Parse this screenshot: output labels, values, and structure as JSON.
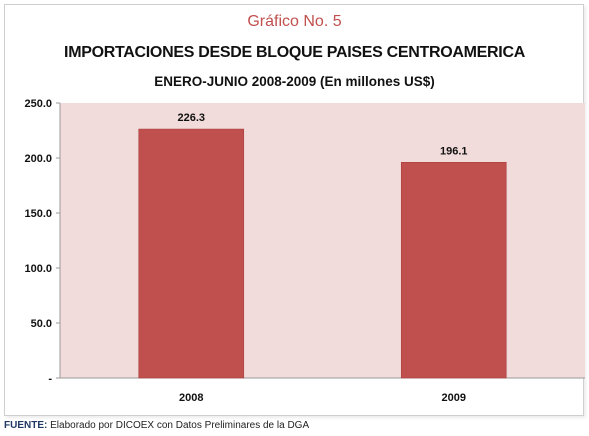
{
  "figure": {
    "number": "Gráfico No. 5",
    "title": "IMPORTACIONES DESDE BLOQUE PAISES CENTROAMERICA",
    "subtitle": "ENERO-JUNIO 2008-2009 (En millones US$)",
    "source_label": "FUENTE:",
    "source_text": " Elaborado por DICOEX con Datos Preliminares de la DGA"
  },
  "colors": {
    "bar": "#c0504d",
    "plot_bg": "#f2dcdb",
    "title_accent": "#c0504d"
  },
  "chart_data": {
    "type": "bar",
    "title": "IMPORTACIONES DESDE BLOQUE PAISES CENTROAMERICA",
    "subtitle": "ENERO-JUNIO 2008-2009 (En millones US$)",
    "categories": [
      "2008",
      "2009"
    ],
    "values": [
      226.3,
      196.1
    ],
    "data_labels": [
      "226.3",
      "196.1"
    ],
    "ylim": [
      0,
      250
    ],
    "yticks": [
      0,
      50,
      100,
      150,
      200,
      250
    ],
    "ytick_labels": [
      "-",
      "50.0",
      "100.0",
      "150.0",
      "200.0",
      "250.0"
    ],
    "xlabel": "",
    "ylabel": "",
    "grid": false,
    "legend": "none"
  }
}
